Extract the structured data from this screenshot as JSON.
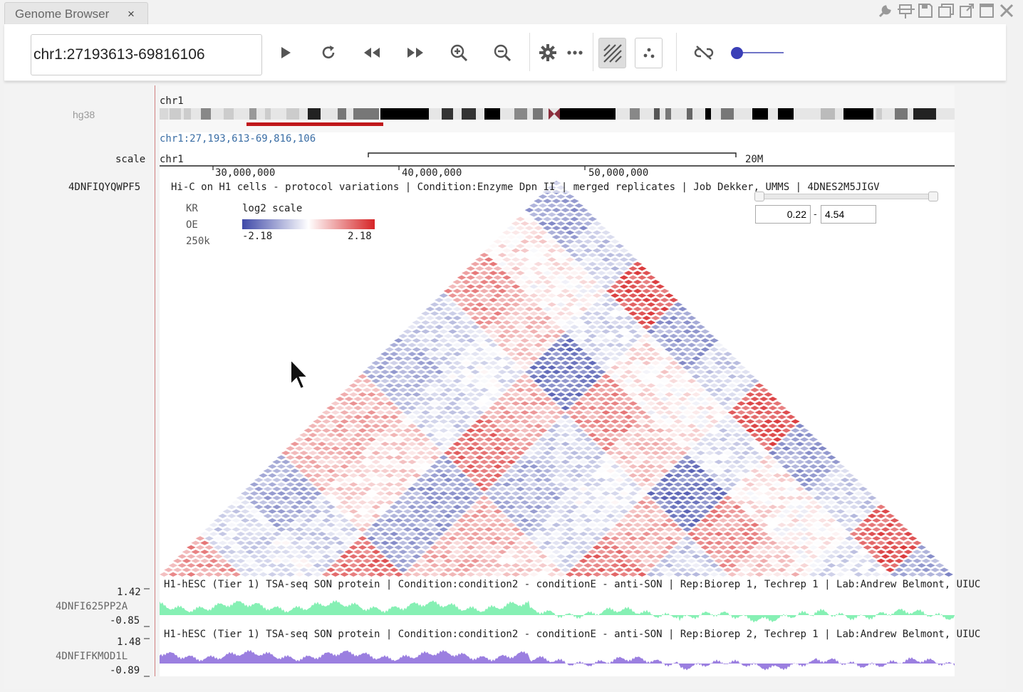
{
  "tab": {
    "title": "Genome Browser",
    "close": "×"
  },
  "window_icons": [
    "wrench-icon",
    "pin-icon",
    "save-icon",
    "copy-icon",
    "popout-icon",
    "maximize-icon",
    "close-icon"
  ],
  "toolbar": {
    "locus_value": "chr1:27193613-69816106",
    "buttons": [
      "play",
      "refresh",
      "rewind",
      "fast-forward",
      "zoom-in",
      "zoom-out",
      "settings",
      "more",
      "tile-view",
      "scatter-view",
      "unlink"
    ],
    "slider_level": 0.0
  },
  "ideogram": {
    "genome": "hg38",
    "chrom": "chr1",
    "region": "chr1:27,193,613-69,816,106"
  },
  "scale": {
    "label": "scale",
    "chrom": "chr1",
    "span": "20M",
    "ticks": [
      "30,000,000",
      "40,000,000",
      "50,000,000"
    ]
  },
  "hic": {
    "id": "4DNFIQYQWPF5",
    "title": "Hi-C on H1 cells - protocol variations | Condition:Enzyme Dpn II | merged replicates | Job Dekker, UMMS | 4DNES2M5JIGV",
    "norm": "KR",
    "mode": "OE",
    "resolution": "250k",
    "scale_label": "log2 scale",
    "min_label": "-2.18",
    "max_label": "2.18",
    "range_min": "0.22",
    "range_max": "4.54",
    "range_dash": "-",
    "color_low": "#3f49a8",
    "color_high": "#d62426"
  },
  "signal1": {
    "id": "4DNFI625PP2A",
    "max": "1.42",
    "min": "-0.85",
    "title": "H1-hESC (Tier 1) TSA-seq SON protein | Condition:condition2 - conditionE - anti-SON | Rep:Biorep 1, Techrep 1 | Lab:Andrew Belmont, UIUC",
    "color": "#86f0b4"
  },
  "signal2": {
    "id": "4DNFIFKMOD1L",
    "max": "1.48",
    "min": "-0.89",
    "title": "H1-hESC (Tier 1) TSA-seq SON protein | Condition:condition2 - conditionE - anti-SON | Rep:Biorep 2, Techrep 1 | Lab:Andrew Belmont, UIUC",
    "color": "#9b7fe0"
  }
}
